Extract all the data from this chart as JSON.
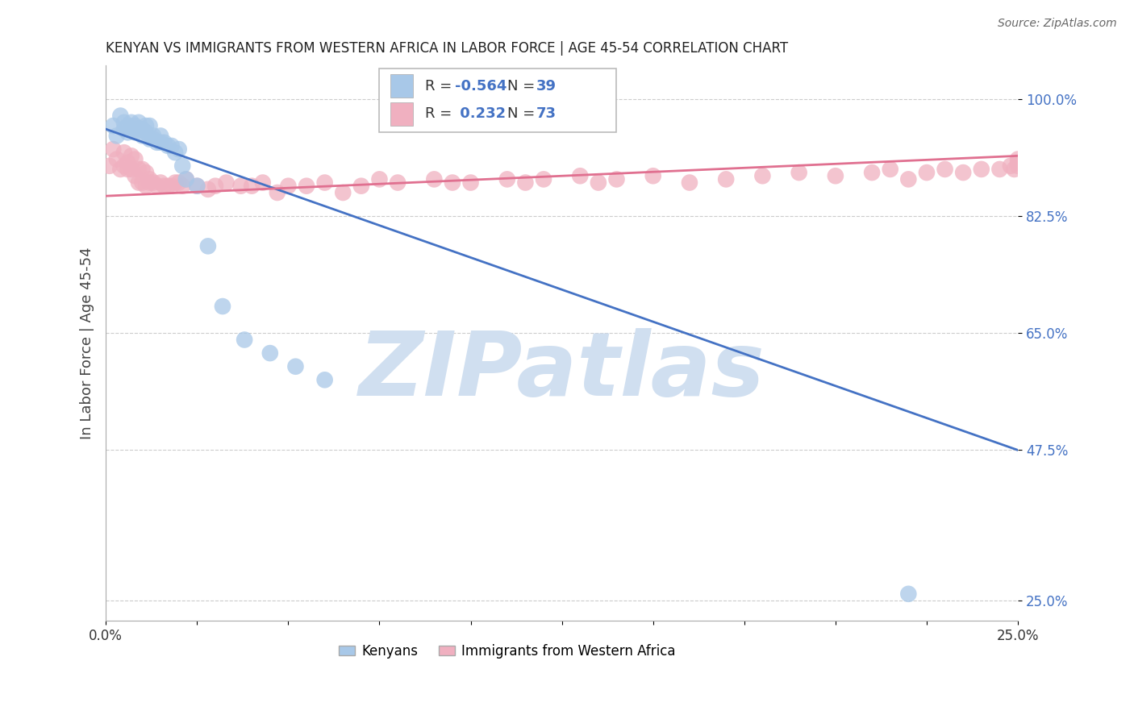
{
  "title": "KENYAN VS IMMIGRANTS FROM WESTERN AFRICA IN LABOR FORCE | AGE 45-54 CORRELATION CHART",
  "source": "Source: ZipAtlas.com",
  "ylabel": "In Labor Force | Age 45-54",
  "xlim": [
    0.0,
    0.25
  ],
  "ylim": [
    0.22,
    1.05
  ],
  "yticks": [
    1.0,
    0.825,
    0.65,
    0.475,
    0.25
  ],
  "ytick_labels": [
    "100.0%",
    "82.5%",
    "65.0%",
    "47.5%",
    "25.0%"
  ],
  "xticks": [
    0.0,
    0.025,
    0.05,
    0.075,
    0.1,
    0.125,
    0.15,
    0.175,
    0.2,
    0.225,
    0.25
  ],
  "xtick_labels": [
    "0.0%",
    "",
    "",
    "",
    "",
    "",
    "",
    "",
    "",
    "",
    "25.0%"
  ],
  "blue_R": "-0.564",
  "blue_N": "39",
  "pink_R": "0.232",
  "pink_N": "73",
  "legend_label_blue": "Kenyans",
  "legend_label_pink": "Immigrants from Western Africa",
  "blue_color": "#a8c8e8",
  "pink_color": "#f0b0c0",
  "blue_line_color": "#4472c4",
  "pink_line_color": "#e07090",
  "blue_tick_color": "#4472c4",
  "watermark": "ZIPatlas",
  "watermark_color": "#d0dff0",
  "blue_line_x0": 0.0,
  "blue_line_y0": 0.955,
  "blue_line_x1": 0.25,
  "blue_line_y1": 0.475,
  "pink_line_x0": 0.0,
  "pink_line_y0": 0.855,
  "pink_line_x1": 0.25,
  "pink_line_y1": 0.915,
  "blue_scatter_x": [
    0.002,
    0.003,
    0.004,
    0.005,
    0.005,
    0.006,
    0.006,
    0.007,
    0.007,
    0.008,
    0.008,
    0.009,
    0.009,
    0.01,
    0.01,
    0.011,
    0.011,
    0.012,
    0.012,
    0.013,
    0.013,
    0.014,
    0.015,
    0.015,
    0.016,
    0.017,
    0.018,
    0.019,
    0.02,
    0.021,
    0.022,
    0.025,
    0.028,
    0.032,
    0.038,
    0.045,
    0.052,
    0.06,
    0.22
  ],
  "blue_scatter_y": [
    0.96,
    0.945,
    0.975,
    0.955,
    0.965,
    0.96,
    0.95,
    0.965,
    0.955,
    0.96,
    0.95,
    0.965,
    0.955,
    0.955,
    0.945,
    0.96,
    0.95,
    0.96,
    0.94,
    0.945,
    0.94,
    0.935,
    0.945,
    0.935,
    0.935,
    0.93,
    0.93,
    0.92,
    0.925,
    0.9,
    0.88,
    0.87,
    0.78,
    0.69,
    0.64,
    0.62,
    0.6,
    0.58,
    0.26
  ],
  "pink_scatter_x": [
    0.001,
    0.002,
    0.003,
    0.004,
    0.005,
    0.005,
    0.006,
    0.006,
    0.007,
    0.007,
    0.008,
    0.008,
    0.009,
    0.009,
    0.01,
    0.01,
    0.011,
    0.011,
    0.012,
    0.012,
    0.013,
    0.014,
    0.015,
    0.016,
    0.017,
    0.018,
    0.019,
    0.02,
    0.021,
    0.022,
    0.025,
    0.028,
    0.03,
    0.033,
    0.037,
    0.04,
    0.043,
    0.047,
    0.05,
    0.055,
    0.06,
    0.065,
    0.07,
    0.075,
    0.08,
    0.09,
    0.095,
    0.1,
    0.11,
    0.115,
    0.12,
    0.13,
    0.135,
    0.14,
    0.15,
    0.16,
    0.17,
    0.18,
    0.19,
    0.2,
    0.21,
    0.215,
    0.22,
    0.225,
    0.23,
    0.235,
    0.24,
    0.245,
    0.248,
    0.249,
    0.25,
    0.25,
    0.25
  ],
  "pink_scatter_y": [
    0.9,
    0.925,
    0.91,
    0.895,
    0.9,
    0.92,
    0.895,
    0.905,
    0.915,
    0.895,
    0.91,
    0.885,
    0.895,
    0.875,
    0.895,
    0.875,
    0.89,
    0.87,
    0.88,
    0.875,
    0.875,
    0.87,
    0.875,
    0.87,
    0.87,
    0.87,
    0.875,
    0.875,
    0.87,
    0.88,
    0.87,
    0.865,
    0.87,
    0.875,
    0.87,
    0.87,
    0.875,
    0.86,
    0.87,
    0.87,
    0.875,
    0.86,
    0.87,
    0.88,
    0.875,
    0.88,
    0.875,
    0.875,
    0.88,
    0.875,
    0.88,
    0.885,
    0.875,
    0.88,
    0.885,
    0.875,
    0.88,
    0.885,
    0.89,
    0.885,
    0.89,
    0.895,
    0.88,
    0.89,
    0.895,
    0.89,
    0.895,
    0.895,
    0.9,
    0.895,
    0.9,
    0.905,
    0.91
  ]
}
